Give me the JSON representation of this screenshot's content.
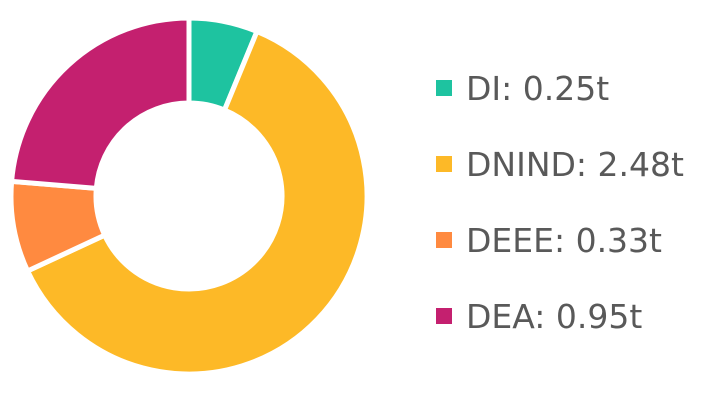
{
  "chart_data": {
    "type": "pie",
    "subtype": "donut",
    "labels": [
      "DI",
      "DNIND",
      "DEEE",
      "DEA"
    ],
    "values": [
      0.25,
      2.48,
      0.33,
      0.95
    ],
    "value_labels": [
      "DI: 0.25t",
      "DNIND: 2.48t",
      "DEEE: 0.33t",
      "DEA: 0.95t"
    ],
    "unit": "t",
    "colors": [
      "#1ec3a0",
      "#fdb927",
      "#ff8a40",
      "#c4206f"
    ],
    "legend_position": "right"
  }
}
